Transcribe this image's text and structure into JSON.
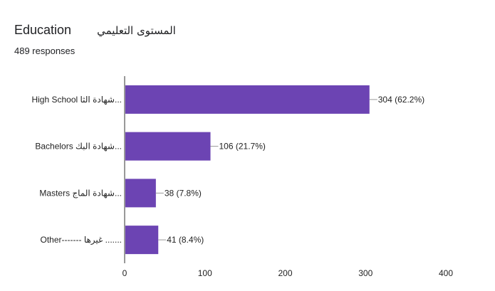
{
  "question": {
    "title_en": "Education",
    "title_ar": "المستوى التعليمي",
    "responses": "489 responses"
  },
  "colors": {
    "bar": "#6c44b3",
    "axis": "#333333",
    "leader": "#999999"
  },
  "chart_data": {
    "type": "bar",
    "orientation": "horizontal",
    "categories": [
      "High School شهادة الثا...",
      "Bachelors شهادة البك...",
      "Masters شهادة الماج...",
      "Other------- غيرها ......."
    ],
    "values": [
      304,
      106,
      38,
      41
    ],
    "value_labels": [
      "304 (62.2%)",
      "106 (21.7%)",
      "38 (7.8%)",
      "41 (8.4%)"
    ],
    "xticks": [
      0,
      100,
      200,
      300,
      400
    ],
    "xlim": [
      0,
      400
    ],
    "grid": false
  }
}
